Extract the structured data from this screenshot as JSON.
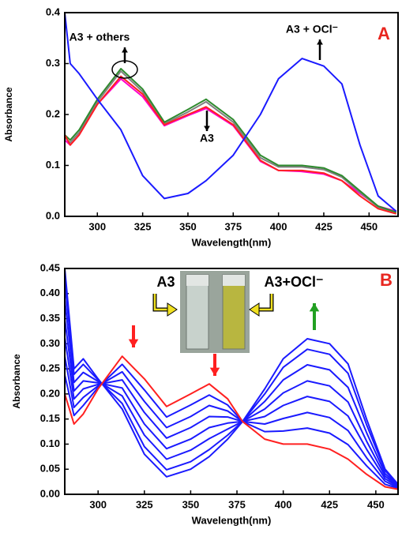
{
  "chart_data": [
    {
      "type": "line",
      "xlabel": "Wavelength(nm)",
      "ylabel": "Absorbance",
      "annotations": [
        "A3 + others",
        "A3 + OCl⁻",
        "A3",
        "A"
      ],
      "xlim": [
        282,
        466
      ],
      "xticks": [
        300,
        325,
        350,
        375,
        400,
        425,
        450
      ],
      "ylim": [
        0,
        0.4
      ],
      "yticks": [
        {
          "value": 0,
          "label": "0.0"
        },
        0.1,
        0.2,
        0.3,
        0.4
      ],
      "x": [
        282,
        285,
        290,
        300,
        313,
        325,
        337,
        350,
        360,
        375,
        390,
        400,
        413,
        425,
        435,
        445,
        455,
        465
      ],
      "series": [
        {
          "color": "#ff00cc",
          "values": [
            0.15,
            0.14,
            0.16,
            0.22,
            0.27,
            0.235,
            0.178,
            0.198,
            0.212,
            0.178,
            0.108,
            0.09,
            0.088,
            0.083,
            0.07,
            0.045,
            0.02,
            0.01
          ]
        },
        {
          "color": "#808080",
          "values": [
            0.155,
            0.145,
            0.165,
            0.225,
            0.285,
            0.245,
            0.182,
            0.205,
            0.225,
            0.185,
            0.115,
            0.097,
            0.097,
            0.092,
            0.077,
            0.047,
            0.018,
            0.007
          ]
        },
        {
          "color": "#2e8b2e",
          "values": [
            0.16,
            0.15,
            0.17,
            0.23,
            0.29,
            0.25,
            0.185,
            0.21,
            0.23,
            0.19,
            0.12,
            0.1,
            0.1,
            0.095,
            0.08,
            0.05,
            0.02,
            0.008
          ]
        },
        {
          "color": "#ff2020",
          "values": [
            0.16,
            0.14,
            0.16,
            0.22,
            0.275,
            0.24,
            0.18,
            0.2,
            0.215,
            0.18,
            0.11,
            0.09,
            0.09,
            0.085,
            0.07,
            0.04,
            0.015,
            0.005
          ]
        },
        {
          "color": "#1a1aff",
          "values": [
            0.4,
            0.3,
            0.28,
            0.23,
            0.17,
            0.08,
            0.035,
            0.045,
            0.07,
            0.12,
            0.2,
            0.27,
            0.31,
            0.295,
            0.26,
            0.14,
            0.04,
            0.01
          ]
        }
      ]
    },
    {
      "type": "line",
      "xlabel": "Wavelength(nm)",
      "ylabel": "Absorbance",
      "annotations": [
        "A3",
        "A3+OCl⁻",
        "B"
      ],
      "xlim": [
        282,
        462
      ],
      "xticks": [
        300,
        325,
        350,
        375,
        400,
        425,
        450
      ],
      "ylim": [
        0,
        0.45
      ],
      "yticks": [
        {
          "value": 0,
          "label": "0.00"
        },
        0.05,
        {
          "value": 0.1,
          "label": "0.10"
        },
        0.15,
        {
          "value": 0.2,
          "label": "0.20"
        },
        0.25,
        {
          "value": 0.3,
          "label": "0.30"
        },
        0.35,
        {
          "value": 0.4,
          "label": "0.40"
        },
        0.45
      ],
      "x": [
        282,
        287,
        292,
        300,
        313,
        325,
        337,
        350,
        360,
        370,
        378,
        390,
        400,
        413,
        425,
        435,
        445,
        455,
        462
      ],
      "series": [
        {
          "color": "#1a1aff",
          "values": [
            0.238,
            0.157,
            0.177,
            0.213,
            0.259,
            0.208,
            0.154,
            0.178,
            0.198,
            0.178,
            0.145,
            0.125,
            0.126,
            0.132,
            0.122,
            0.099,
            0.057,
            0.02,
            0.012
          ]
        },
        {
          "color": "#1a1aff",
          "values": [
            0.275,
            0.173,
            0.193,
            0.216,
            0.244,
            0.185,
            0.133,
            0.155,
            0.177,
            0.166,
            0.145,
            0.14,
            0.151,
            0.163,
            0.153,
            0.127,
            0.073,
            0.026,
            0.013
          ]
        },
        {
          "color": "#1a1aff",
          "values": [
            0.313,
            0.19,
            0.21,
            0.219,
            0.228,
            0.163,
            0.112,
            0.133,
            0.155,
            0.154,
            0.145,
            0.155,
            0.177,
            0.195,
            0.185,
            0.156,
            0.09,
            0.031,
            0.015
          ]
        },
        {
          "color": "#1a1aff",
          "values": [
            0.35,
            0.206,
            0.226,
            0.222,
            0.212,
            0.14,
            0.091,
            0.11,
            0.133,
            0.142,
            0.145,
            0.17,
            0.202,
            0.226,
            0.216,
            0.184,
            0.106,
            0.036,
            0.016
          ]
        },
        {
          "color": "#1a1aff",
          "values": [
            0.388,
            0.223,
            0.243,
            0.225,
            0.196,
            0.118,
            0.07,
            0.088,
            0.111,
            0.13,
            0.145,
            0.185,
            0.228,
            0.258,
            0.248,
            0.213,
            0.123,
            0.041,
            0.018
          ]
        },
        {
          "color": "#1a1aff",
          "values": [
            0.425,
            0.239,
            0.259,
            0.228,
            0.181,
            0.095,
            0.049,
            0.065,
            0.089,
            0.118,
            0.145,
            0.2,
            0.253,
            0.289,
            0.279,
            0.241,
            0.139,
            0.047,
            0.019
          ]
        },
        {
          "color": "#1a1aff",
          "values": [
            0.45,
            0.25,
            0.27,
            0.23,
            0.17,
            0.08,
            0.035,
            0.05,
            0.075,
            0.11,
            0.145,
            0.21,
            0.27,
            0.31,
            0.3,
            0.26,
            0.15,
            0.05,
            0.02
          ]
        },
        {
          "color": "#ff2020",
          "values": [
            0.2,
            0.14,
            0.16,
            0.21,
            0.275,
            0.23,
            0.175,
            0.2,
            0.22,
            0.19,
            0.145,
            0.11,
            0.1,
            0.1,
            0.09,
            0.07,
            0.04,
            0.015,
            0.01
          ]
        }
      ]
    }
  ]
}
